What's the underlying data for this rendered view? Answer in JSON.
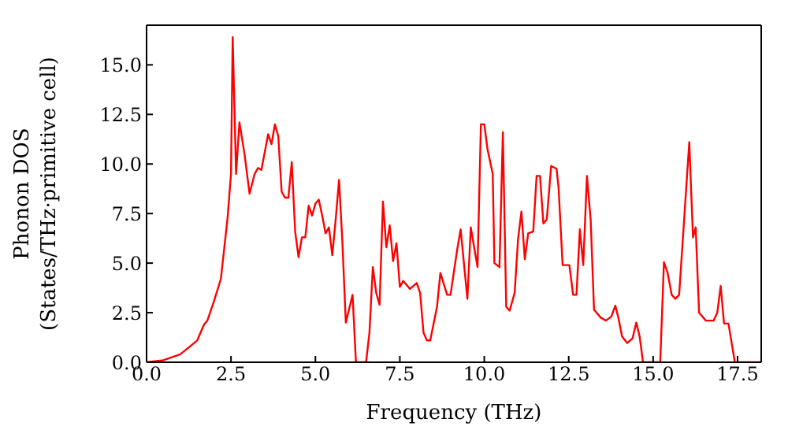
{
  "chart_data": {
    "type": "line",
    "xlabel": "Frequency (THz)",
    "ylabel": "Phonon DOS\n(States/THz·primitive cell)",
    "x": [
      0,
      0.5,
      1.0,
      1.5,
      1.7,
      1.8,
      2.0,
      2.2,
      2.4,
      2.5,
      2.55,
      2.65,
      2.75,
      2.9,
      3.05,
      3.2,
      3.3,
      3.4,
      3.5,
      3.6,
      3.7,
      3.8,
      3.9,
      4.0,
      4.1,
      4.2,
      4.3,
      4.4,
      4.5,
      4.6,
      4.7,
      4.8,
      4.9,
      5.0,
      5.1,
      5.2,
      5.3,
      5.4,
      5.5,
      5.6,
      5.7,
      5.8,
      5.9,
      6.0,
      6.1,
      6.2,
      6.5,
      6.6,
      6.7,
      6.8,
      6.9,
      7.0,
      7.1,
      7.2,
      7.3,
      7.4,
      7.5,
      7.6,
      7.8,
      8.0,
      8.1,
      8.2,
      8.3,
      8.4,
      8.6,
      8.7,
      8.9,
      9.0,
      9.2,
      9.3,
      9.5,
      9.6,
      9.8,
      9.9,
      10.0,
      10.1,
      10.25,
      10.3,
      10.45,
      10.55,
      10.65,
      10.75,
      10.9,
      11.0,
      11.1,
      11.2,
      11.3,
      11.45,
      11.55,
      11.65,
      11.75,
      11.85,
      11.98,
      12.14,
      12.2,
      12.32,
      12.52,
      12.63,
      12.73,
      12.83,
      12.93,
      13.04,
      13.15,
      13.25,
      13.45,
      13.6,
      13.76,
      13.88,
      13.97,
      14.08,
      14.23,
      14.39,
      14.5,
      14.6,
      14.7,
      15.21,
      15.32,
      15.43,
      15.55,
      15.66,
      15.77,
      16.07,
      16.18,
      16.26,
      16.36,
      16.56,
      16.79,
      16.9,
      17.0,
      17.1,
      17.23,
      17.42,
      18.2
    ],
    "series": [
      {
        "color": "#ff0000",
        "values": [
          0,
          0.1,
          0.4,
          1.1,
          1.9,
          2.1,
          3.1,
          4.2,
          7.3,
          9.5,
          16.4,
          9.5,
          12.1,
          10.5,
          8.5,
          9.5,
          9.8,
          9.7,
          10.6,
          11.5,
          11.0,
          12.0,
          11.4,
          8.6,
          8.3,
          8.3,
          10.1,
          6.6,
          5.3,
          6.3,
          6.3,
          7.9,
          7.4,
          8.0,
          8.2,
          7.4,
          6.5,
          6.8,
          5.4,
          7.2,
          9.2,
          6.0,
          2.0,
          2.7,
          3.4,
          0,
          0,
          1.5,
          4.8,
          3.5,
          2.9,
          8.1,
          5.8,
          6.9,
          5.1,
          6.0,
          3.8,
          4.1,
          3.7,
          4.0,
          3.5,
          1.5,
          1.1,
          1.1,
          2.8,
          4.5,
          3.4,
          3.4,
          5.7,
          6.7,
          3.2,
          6.8,
          4.8,
          12.0,
          12.0,
          10.7,
          9.5,
          5.0,
          4.8,
          11.6,
          2.8,
          2.6,
          3.5,
          6.2,
          7.6,
          5.2,
          6.5,
          6.6,
          9.4,
          9.4,
          7.0,
          7.2,
          9.9,
          9.76,
          8.8,
          4.9,
          4.9,
          3.4,
          3.4,
          6.7,
          4.9,
          9.4,
          7.2,
          2.65,
          2.25,
          2.1,
          2.3,
          2.85,
          2.25,
          1.3,
          0.97,
          1.2,
          2.0,
          1.3,
          0,
          0,
          5.05,
          4.5,
          3.4,
          3.2,
          3.4,
          11.1,
          6.3,
          6.8,
          2.5,
          2.1,
          2.1,
          2.5,
          3.85,
          1.95,
          1.95,
          0,
          0
        ]
      }
    ],
    "xlim": [
      0,
      18.2
    ],
    "ylim": [
      0,
      17
    ],
    "xticks": [
      {
        "value": 0,
        "label": "0.0"
      },
      {
        "value": 2.5,
        "label": "2.5"
      },
      {
        "value": 5,
        "label": "5.0"
      },
      {
        "value": 7.5,
        "label": "7.5"
      },
      {
        "value": 10,
        "label": "10.0"
      },
      {
        "value": 12.5,
        "label": "12.5"
      },
      {
        "value": 15,
        "label": "15.0"
      },
      {
        "value": 17.5,
        "label": "17.5"
      }
    ],
    "yticks": [
      {
        "value": 0,
        "label": "0.0"
      },
      {
        "value": 2.5,
        "label": "2.5"
      },
      {
        "value": 5,
        "label": "5.0"
      },
      {
        "value": 7.5,
        "label": "7.5"
      },
      {
        "value": 10,
        "label": "10.0"
      },
      {
        "value": 12.5,
        "label": "12.5"
      },
      {
        "value": 15,
        "label": "15.0"
      }
    ],
    "grid": false,
    "legend": false,
    "marker": "none",
    "line_style": "solid"
  }
}
